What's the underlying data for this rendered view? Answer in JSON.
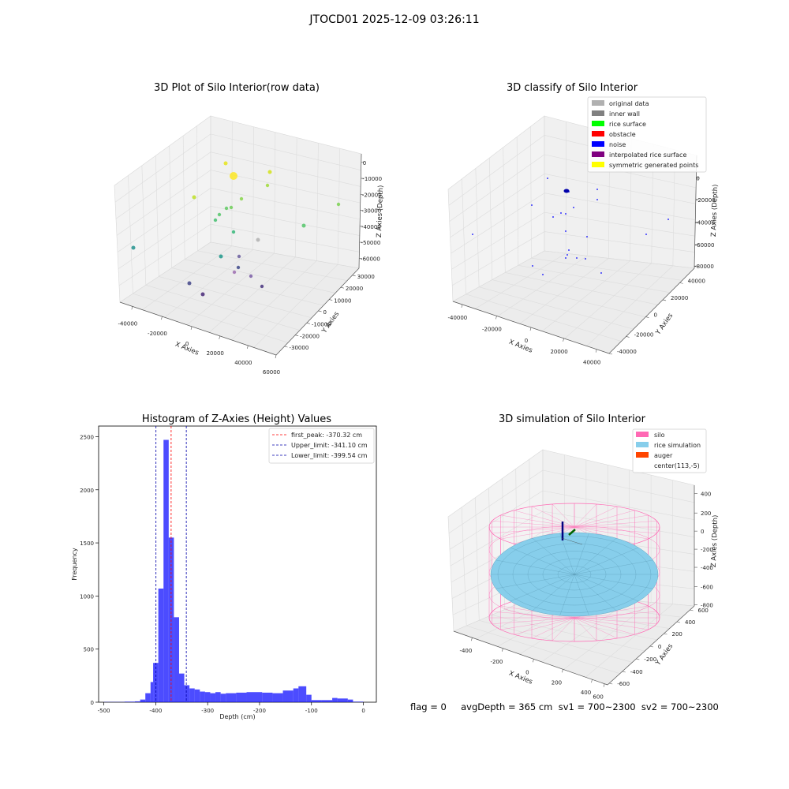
{
  "suptitle": "JTOCD01 2025-12-09 03:26:11",
  "footer": "flag = 0     avgDepth = 365 cm  sv1 = 700~2300  sv2 = 700~2300",
  "chart_data": [
    {
      "type": "scatter",
      "title": "3D Plot of Silo Interior(row data)",
      "xlabel": "X Axies",
      "ylabel": "Y Axies",
      "zlabel": "Z Axies (Depth)",
      "x_ticks": [
        "-40000",
        "-20000",
        "0",
        "20000",
        "40000",
        "60000"
      ],
      "y_ticks": [
        "-30000",
        "-20000",
        "-10000",
        "0",
        "10000",
        "20000",
        "30000"
      ],
      "z_ticks": [
        "0",
        "-10000",
        "-20000",
        "-30000",
        "-40000",
        "-50000",
        "-60000"
      ],
      "colormap": "viridis (colored by depth)",
      "grid": true
    },
    {
      "type": "scatter",
      "title": "3D classify of Silo Interior",
      "xlabel": "X Axies",
      "ylabel": "Y Axies",
      "zlabel": "Z Axies (Depth)",
      "x_ticks": [
        "-40000",
        "-20000",
        "0",
        "20000",
        "40000"
      ],
      "y_ticks": [
        "-40000",
        "-20000",
        "0",
        "20000",
        "40000"
      ],
      "z_ticks": [
        "0",
        "-20000",
        "-40000",
        "-60000",
        "-80000"
      ],
      "legend_position": "top-right",
      "legend": [
        {
          "label": "original data",
          "color": "#b0b0b0"
        },
        {
          "label": "inner wall",
          "color": "#808080"
        },
        {
          "label": "rice surface",
          "color": "#00ff00"
        },
        {
          "label": "obstacle",
          "color": "#ff0000"
        },
        {
          "label": "noise",
          "color": "#0000ff"
        },
        {
          "label": "interpolated rice surface",
          "color": "#800080"
        },
        {
          "label": "symmetric generated points",
          "color": "#ffff00"
        }
      ],
      "grid": true
    },
    {
      "type": "bar",
      "title": "Histogram of Z-Axies (Height) Values",
      "xlabel": "Depth (cm)",
      "ylabel": "Frequency",
      "xlim": [
        -510,
        25
      ],
      "ylim": [
        0,
        2600
      ],
      "x_ticks": [
        -500,
        -400,
        -300,
        -200,
        -100,
        0
      ],
      "y_ticks": [
        0,
        500,
        1000,
        1500,
        2000,
        2500
      ],
      "bar_color": "#0000ff",
      "bins": [
        {
          "x0": -500,
          "x1": -460,
          "value": 2
        },
        {
          "x0": -460,
          "x1": -440,
          "value": 5
        },
        {
          "x0": -440,
          "x1": -430,
          "value": 8
        },
        {
          "x0": -430,
          "x1": -420,
          "value": 25
        },
        {
          "x0": -420,
          "x1": -410,
          "value": 85
        },
        {
          "x0": -410,
          "x1": -405,
          "value": 190
        },
        {
          "x0": -405,
          "x1": -395,
          "value": 370
        },
        {
          "x0": -395,
          "x1": -385,
          "value": 1070
        },
        {
          "x0": -385,
          "x1": -375,
          "value": 2470
        },
        {
          "x0": -375,
          "x1": -365,
          "value": 1550
        },
        {
          "x0": -365,
          "x1": -355,
          "value": 800
        },
        {
          "x0": -355,
          "x1": -345,
          "value": 270
        },
        {
          "x0": -345,
          "x1": -335,
          "value": 160
        },
        {
          "x0": -335,
          "x1": -325,
          "value": 130
        },
        {
          "x0": -325,
          "x1": -315,
          "value": 120
        },
        {
          "x0": -315,
          "x1": -305,
          "value": 100
        },
        {
          "x0": -305,
          "x1": -295,
          "value": 95
        },
        {
          "x0": -295,
          "x1": -285,
          "value": 85
        },
        {
          "x0": -285,
          "x1": -275,
          "value": 95
        },
        {
          "x0": -275,
          "x1": -265,
          "value": 80
        },
        {
          "x0": -265,
          "x1": -245,
          "value": 85
        },
        {
          "x0": -245,
          "x1": -225,
          "value": 90
        },
        {
          "x0": -225,
          "x1": -195,
          "value": 95
        },
        {
          "x0": -195,
          "x1": -175,
          "value": 90
        },
        {
          "x0": -175,
          "x1": -155,
          "value": 85
        },
        {
          "x0": -155,
          "x1": -135,
          "value": 110
        },
        {
          "x0": -135,
          "x1": -125,
          "value": 130
        },
        {
          "x0": -125,
          "x1": -110,
          "value": 150
        },
        {
          "x0": -110,
          "x1": -100,
          "value": 70
        },
        {
          "x0": -100,
          "x1": -80,
          "value": 20
        },
        {
          "x0": -80,
          "x1": -60,
          "value": 20
        },
        {
          "x0": -60,
          "x1": -50,
          "value": 40
        },
        {
          "x0": -50,
          "x1": -30,
          "value": 35
        },
        {
          "x0": -30,
          "x1": -20,
          "value": 25
        },
        {
          "x0": -20,
          "x1": 0,
          "value": 5
        }
      ],
      "vlines": [
        {
          "label": "first_peak: -370.32 cm",
          "x": -370.32,
          "color": "#ff0000"
        },
        {
          "label": "Upper_limit: -341.10 cm",
          "x": -341.1,
          "color": "#0000aa"
        },
        {
          "label": "Lower_limit: -399.54 cm",
          "x": -399.54,
          "color": "#0000aa"
        }
      ],
      "legend_position": "top-right"
    },
    {
      "type": "3d-surface",
      "title": "3D simulation of Silo Interior",
      "xlabel": "X Axies",
      "ylabel": "Y Axies",
      "zlabel": "Z Axies (Depth)",
      "x_ticks": [
        "-400",
        "-200",
        "0",
        "200",
        "400",
        "600"
      ],
      "y_ticks": [
        "-600",
        "-400",
        "-200",
        "0",
        "200",
        "400",
        "600"
      ],
      "z_ticks": [
        "400",
        "200",
        "0",
        "-200",
        "-400",
        "-600",
        "-800"
      ],
      "legend_position": "top-right",
      "legend": [
        {
          "label": "silo",
          "color": "#ff69b4"
        },
        {
          "label": "rice simulation",
          "color": "#87ceeb"
        },
        {
          "label": "auger",
          "color": "#ff4500"
        },
        {
          "label": "center(113,-5)",
          "color": ""
        }
      ]
    }
  ]
}
